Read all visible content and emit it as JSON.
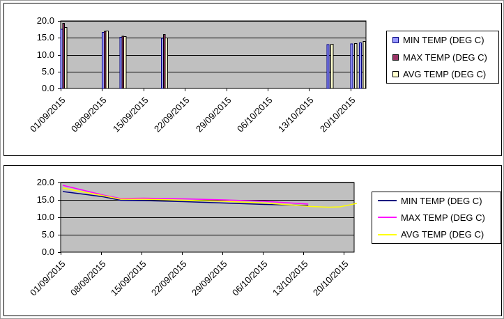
{
  "page": {
    "background": "#ffffff"
  },
  "colors": {
    "plot_background": "#c0c0c0",
    "gridline": "#000000",
    "axis": "#000000",
    "chart_border": "#000000",
    "legend_background": "#ffffff"
  },
  "chart_data": [
    {
      "type": "bar",
      "title": "",
      "xlabel": "",
      "ylabel": "",
      "ylim": [
        0,
        20
      ],
      "grid": true,
      "legend_position": "right",
      "x_unit": "days since 01/09/2015",
      "y_ticks": [
        {
          "value": 20,
          "label": "20.0"
        },
        {
          "value": 15,
          "label": "15.0"
        },
        {
          "value": 10,
          "label": "10.0"
        },
        {
          "value": 5,
          "label": "5.0"
        },
        {
          "value": 0,
          "label": "0.0"
        }
      ],
      "x_ticks": [
        {
          "day": 0,
          "label": "01/09/2015"
        },
        {
          "day": 7,
          "label": "08/09/2015"
        },
        {
          "day": 14,
          "label": "15/09/2015"
        },
        {
          "day": 21,
          "label": "22/09/2015"
        },
        {
          "day": 28,
          "label": "29/09/2015"
        },
        {
          "day": 35,
          "label": "06/10/2015"
        },
        {
          "day": 42,
          "label": "13/10/2015"
        },
        {
          "day": 49,
          "label": "20/10/2015"
        }
      ],
      "series": [
        {
          "name": "MIN TEMP (DEG C)",
          "fill": "#9999ff",
          "edge": "#000080",
          "points": [
            [
              0,
              17.5
            ],
            [
              7,
              16.6
            ],
            [
              10,
              15.2
            ],
            [
              17,
              14.8
            ],
            [
              45,
              13.0
            ],
            [
              49,
              13.2
            ],
            [
              50.5,
              13.5
            ]
          ]
        },
        {
          "name": "MAX TEMP (DEG C)",
          "fill": "#993366",
          "edge": "#000000",
          "points": [
            [
              0,
              19.3
            ],
            [
              7,
              16.9
            ],
            [
              10,
              15.5
            ],
            [
              17,
              16.0
            ]
          ]
        },
        {
          "name": "AVG TEMP (DEG C)",
          "fill": "#ffffcc",
          "edge": "#000000",
          "points": [
            [
              0,
              18.0
            ],
            [
              7,
              17.0
            ],
            [
              10,
              15.4
            ],
            [
              17,
              15.0
            ],
            [
              45,
              13.1
            ],
            [
              49,
              13.3
            ],
            [
              50.5,
              13.9
            ]
          ]
        }
      ]
    },
    {
      "type": "line",
      "title": "",
      "xlabel": "",
      "ylabel": "",
      "ylim": [
        0,
        20
      ],
      "grid": true,
      "legend_position": "right",
      "x_unit": "days since 01/09/2015",
      "y_ticks": [
        {
          "value": 20,
          "label": "20.0"
        },
        {
          "value": 15,
          "label": "15.0"
        },
        {
          "value": 10,
          "label": "10.0"
        },
        {
          "value": 5,
          "label": "5.0"
        },
        {
          "value": 0,
          "label": "0.0"
        }
      ],
      "x_ticks": [
        {
          "day": 0,
          "label": "01/09/2015"
        },
        {
          "day": 7,
          "label": "08/09/2015"
        },
        {
          "day": 14,
          "label": "15/09/2015"
        },
        {
          "day": 21,
          "label": "22/09/2015"
        },
        {
          "day": 28,
          "label": "29/09/2015"
        },
        {
          "day": 35,
          "label": "06/10/2015"
        },
        {
          "day": 42,
          "label": "13/10/2015"
        },
        {
          "day": 49,
          "label": "20/10/2015"
        }
      ],
      "series": [
        {
          "name": "MIN TEMP (DEG C)",
          "color": "#000080",
          "points": [
            [
              0,
              17.4
            ],
            [
              7,
              15.9
            ],
            [
              10,
              14.9
            ],
            [
              14,
              14.8
            ],
            [
              21,
              14.5
            ],
            [
              28,
              14.1
            ],
            [
              35,
              13.7
            ],
            [
              42.5,
              13.4
            ]
          ]
        },
        {
          "name": "MAX TEMP (DEG C)",
          "color": "#ff00ff",
          "points": [
            [
              0,
              19.2
            ],
            [
              7,
              16.4
            ],
            [
              10,
              15.4
            ],
            [
              14,
              15.5
            ],
            [
              21,
              15.3
            ],
            [
              28,
              15.0
            ],
            [
              35,
              14.6
            ],
            [
              42.5,
              13.8
            ]
          ]
        },
        {
          "name": "AVG TEMP (DEG C)",
          "color": "#ffff00",
          "points": [
            [
              0,
              18.4
            ],
            [
              7,
              16.2
            ],
            [
              10,
              15.2
            ],
            [
              14,
              15.2
            ],
            [
              21,
              14.9
            ],
            [
              28,
              14.6
            ],
            [
              35,
              14.1
            ],
            [
              40,
              13.5
            ],
            [
              43,
              13.1
            ],
            [
              46,
              12.9
            ],
            [
              48,
              13.0
            ],
            [
              50.9,
              14.0
            ]
          ]
        }
      ]
    }
  ]
}
